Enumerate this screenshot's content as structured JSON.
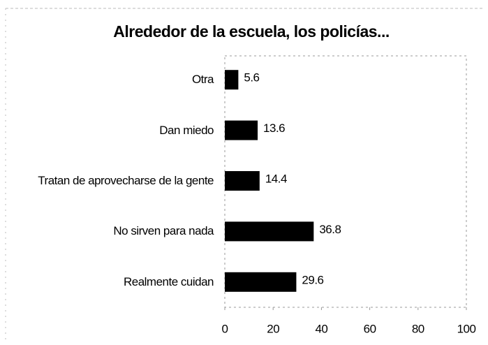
{
  "chart_data": {
    "type": "barh",
    "title": "Alrededor de la escuela, los policías...",
    "categories": [
      "Otra",
      "Dan miedo",
      "Tratan de aprovecharse de la gente",
      "No sirven para nada",
      "Realmente cuidan"
    ],
    "values": [
      5.6,
      13.6,
      14.4,
      36.8,
      29.6
    ],
    "color": "#000000",
    "xlim": [
      0,
      100
    ],
    "xticks": [
      0,
      20,
      40,
      60,
      80,
      100
    ]
  }
}
